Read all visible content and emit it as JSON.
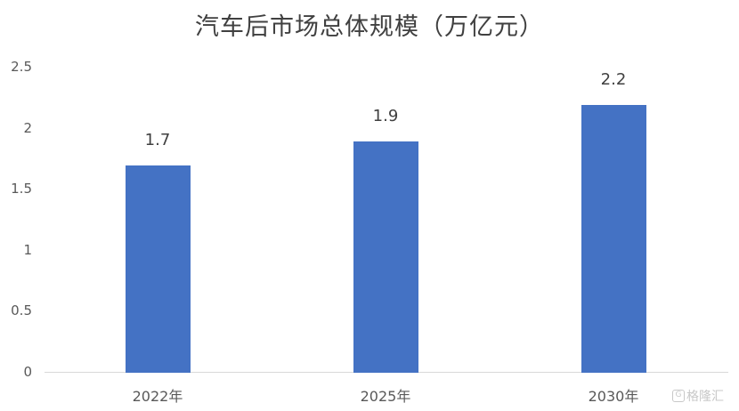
{
  "chart_data": {
    "type": "bar",
    "title": "汽车后市场总体规模（万亿元）",
    "categories": [
      "2022年",
      "2025年",
      "2030年"
    ],
    "values": [
      1.7,
      1.9,
      2.2
    ],
    "data_labels": [
      "1.7",
      "1.9",
      "2.2"
    ],
    "xlabel": "",
    "ylabel": "",
    "ylim": [
      0,
      2.5
    ],
    "yticks": [
      "0",
      "0.5",
      "1",
      "1.5",
      "2",
      "2.5"
    ],
    "grid": false,
    "legend": null,
    "bar_color": "#4472c4"
  },
  "watermark": {
    "text": "格隆汇",
    "icon": "logo-icon"
  }
}
